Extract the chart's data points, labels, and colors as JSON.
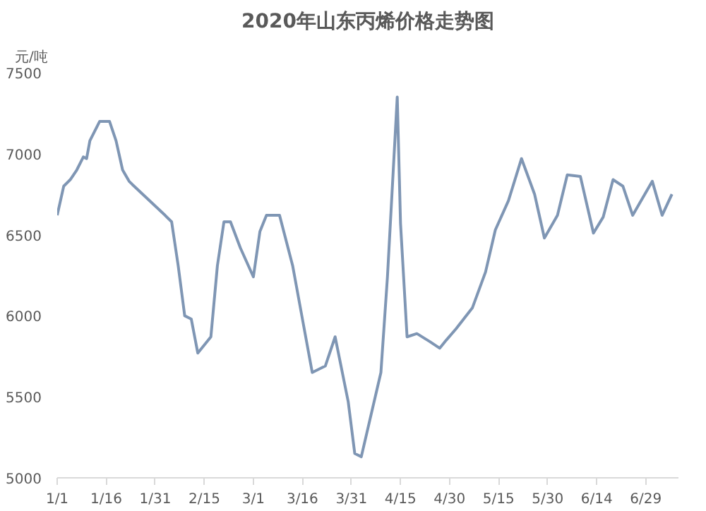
{
  "chart_data": {
    "type": "line",
    "title": "2020年山东丙烯价格走势图",
    "ylabel": "元/吨",
    "x": [
      "2020-01-01",
      "2020-01-03",
      "2020-01-05",
      "2020-01-07",
      "2020-01-09",
      "2020-01-10",
      "2020-01-11",
      "2020-01-14",
      "2020-01-17",
      "2020-01-19",
      "2020-01-21",
      "2020-01-23",
      "2020-01-24",
      "2020-02-03",
      "2020-02-05",
      "2020-02-07",
      "2020-02-09",
      "2020-02-11",
      "2020-02-13",
      "2020-02-17",
      "2020-02-19",
      "2020-02-21",
      "2020-02-23",
      "2020-02-26",
      "2020-03-01",
      "2020-03-03",
      "2020-03-05",
      "2020-03-09",
      "2020-03-13",
      "2020-03-16",
      "2020-03-19",
      "2020-03-23",
      "2020-03-26",
      "2020-03-30",
      "2020-04-01",
      "2020-04-03",
      "2020-04-09",
      "2020-04-11",
      "2020-04-14",
      "2020-04-15",
      "2020-04-17",
      "2020-04-20",
      "2020-04-24",
      "2020-04-27",
      "2020-04-29",
      "2020-05-02",
      "2020-05-07",
      "2020-05-11",
      "2020-05-14",
      "2020-05-18",
      "2020-05-22",
      "2020-05-26",
      "2020-05-29",
      "2020-06-02",
      "2020-06-05",
      "2020-06-09",
      "2020-06-13",
      "2020-06-16",
      "2020-06-19",
      "2020-06-22",
      "2020-06-25",
      "2020-07-01",
      "2020-07-04",
      "2020-07-07"
    ],
    "series": [
      {
        "color": "#7f96b4",
        "values": [
          6620,
          6800,
          6840,
          6900,
          6980,
          6970,
          7080,
          7200,
          7200,
          7080,
          6900,
          6830,
          6810,
          6620,
          6580,
          6310,
          6000,
          5980,
          5770,
          5870,
          6310,
          6580,
          6580,
          6420,
          6240,
          6520,
          6620,
          6620,
          6310,
          5980,
          5650,
          5690,
          5870,
          5470,
          5150,
          5130,
          5650,
          6240,
          7350,
          6570,
          5870,
          5890,
          5840,
          5800,
          5850,
          5920,
          6050,
          6270,
          6530,
          6710,
          6970,
          6750,
          6480,
          6620,
          6870,
          6860,
          6510,
          6610,
          6840,
          6800,
          6620,
          6830,
          6620,
          6750
        ]
      }
    ],
    "xlim": [
      "2020-01-01",
      "2020-07-09"
    ],
    "xticks": [
      {
        "value": "2020-01-01",
        "label": "1/1"
      },
      {
        "value": "2020-01-16",
        "label": "1/16"
      },
      {
        "value": "2020-01-31",
        "label": "1/31"
      },
      {
        "value": "2020-02-15",
        "label": "2/15"
      },
      {
        "value": "2020-03-01",
        "label": "3/1"
      },
      {
        "value": "2020-03-16",
        "label": "3/16"
      },
      {
        "value": "2020-03-31",
        "label": "3/31"
      },
      {
        "value": "2020-04-15",
        "label": "4/15"
      },
      {
        "value": "2020-04-30",
        "label": "4/30"
      },
      {
        "value": "2020-05-15",
        "label": "5/15"
      },
      {
        "value": "2020-05-30",
        "label": "5/30"
      },
      {
        "value": "2020-06-14",
        "label": "6/14"
      },
      {
        "value": "2020-06-29",
        "label": "6/29"
      }
    ],
    "ylim": [
      5000,
      7500
    ],
    "yticks": [
      5000,
      5500,
      6000,
      6500,
      7000,
      7500
    ],
    "grid": false,
    "marker": "none",
    "line_style": "solid"
  }
}
